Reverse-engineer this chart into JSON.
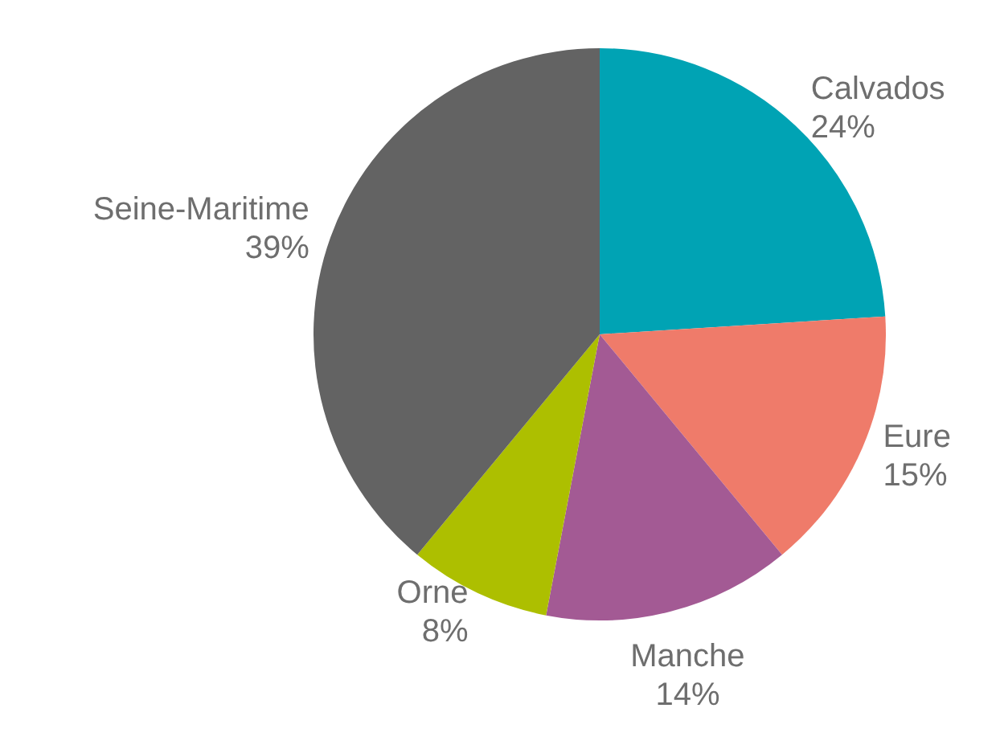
{
  "chart_data": {
    "type": "pie",
    "categories": [
      "Calvados",
      "Eure",
      "Manche",
      "Orne",
      "Seine-Maritime"
    ],
    "values": [
      24,
      15,
      14,
      8,
      39
    ],
    "colors": [
      "#00a3b4",
      "#ef7b6a",
      "#a35a94",
      "#adbf00",
      "#636363"
    ],
    "value_labels": [
      "24%",
      "15%",
      "14%",
      "8%",
      "39%"
    ],
    "legend": false
  }
}
